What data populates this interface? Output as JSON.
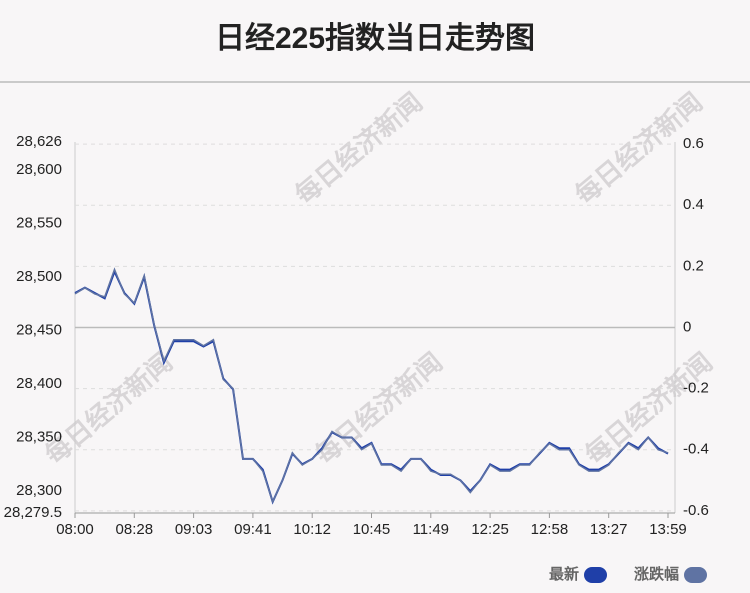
{
  "chart_data": {
    "type": "line",
    "title": "日经225指数当日走势图",
    "watermark": "每日经济新闻",
    "categories": [
      "08:00",
      null,
      null,
      null,
      null,
      null,
      "08:28",
      null,
      null,
      null,
      null,
      null,
      "09:03",
      null,
      null,
      null,
      null,
      null,
      "09:41",
      null,
      null,
      null,
      null,
      null,
      "10:12",
      null,
      null,
      null,
      null,
      null,
      "10:45",
      null,
      null,
      null,
      null,
      null,
      "11:49",
      null,
      null,
      null,
      null,
      null,
      "12:25",
      null,
      null,
      null,
      null,
      null,
      "12:58",
      null,
      null,
      null,
      null,
      null,
      "13:27",
      null,
      null,
      null,
      null,
      null,
      "13:59"
    ],
    "series": [
      {
        "name": "最新",
        "color": "#1f3fa8",
        "axis": "y",
        "values": [
          28485,
          28490,
          28485,
          28480,
          28505,
          28485,
          28475,
          28500,
          28455,
          28420,
          28440,
          28440,
          28440,
          28435,
          28440,
          28405,
          28395,
          28330,
          28330,
          28320,
          28290,
          28310,
          28335,
          28325,
          28330,
          28340,
          28355,
          28350,
          28350,
          28340,
          28345,
          28325,
          28325,
          28320,
          28330,
          28330,
          28320,
          28315,
          28315,
          28310,
          28300,
          28310,
          28325,
          28320,
          28320,
          28325,
          28325,
          28335,
          28345,
          28340,
          28340,
          28325,
          28320,
          28320,
          28325,
          28335,
          28345,
          28340,
          28350,
          28340,
          28335
        ]
      },
      {
        "name": "涨跌幅",
        "color": "#5f73a3",
        "axis": "y2",
        "values": [
          0.11,
          0.13,
          0.11,
          0.1,
          0.19,
          0.11,
          0.08,
          0.17,
          0.01,
          -0.11,
          -0.04,
          -0.04,
          -0.04,
          -0.06,
          -0.04,
          -0.17,
          -0.2,
          -0.43,
          -0.43,
          -0.47,
          -0.57,
          -0.5,
          -0.41,
          -0.45,
          -0.43,
          -0.4,
          -0.34,
          -0.36,
          -0.36,
          -0.4,
          -0.38,
          -0.45,
          -0.45,
          -0.47,
          -0.43,
          -0.43,
          -0.47,
          -0.48,
          -0.48,
          -0.5,
          -0.54,
          -0.5,
          -0.45,
          -0.47,
          -0.47,
          -0.45,
          -0.45,
          -0.41,
          -0.38,
          -0.4,
          -0.4,
          -0.45,
          -0.47,
          -0.47,
          -0.45,
          -0.41,
          -0.38,
          -0.4,
          -0.36,
          -0.4,
          -0.41
        ]
      }
    ],
    "ylim": [
      28279.5,
      28626
    ],
    "yticks": [
      {
        "value": 28626,
        "label": "28,626"
      },
      {
        "value": 28600,
        "label": "28,600"
      },
      {
        "value": 28550,
        "label": "28,550"
      },
      {
        "value": 28500,
        "label": "28,500"
      },
      {
        "value": 28450,
        "label": "28,450"
      },
      {
        "value": 28400,
        "label": "28,400"
      },
      {
        "value": 28350,
        "label": "28,350"
      },
      {
        "value": 28300,
        "label": "28,300"
      },
      {
        "value": 28279.5,
        "label": "28,279.5"
      }
    ],
    "y2lim": [
      -0.607,
      0.607
    ],
    "y2ticks": [
      0.6,
      0.4,
      0.2,
      0,
      -0.2,
      -0.4,
      -0.6
    ],
    "grid": true,
    "legend": "bottom-right"
  }
}
